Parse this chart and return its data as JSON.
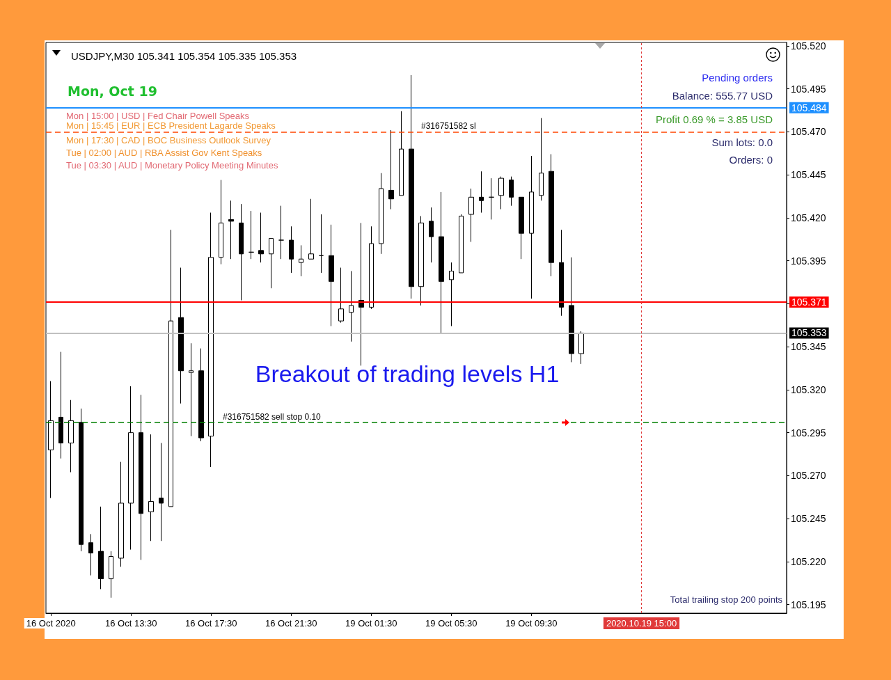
{
  "chart_data": {
    "type": "candlestick",
    "title": "USDJPY,M30 105.341 105.354 105.335 105.353",
    "categories": [
      "16 Oct 2020",
      null,
      null,
      null,
      null,
      null,
      null,
      null,
      "16 Oct 13:30",
      null,
      null,
      null,
      null,
      null,
      null,
      null,
      "16 Oct 17:30",
      null,
      null,
      null,
      null,
      null,
      null,
      null,
      "16 Oct 21:30",
      null,
      null,
      null,
      null,
      null,
      null,
      null,
      "19 Oct 01:30",
      null,
      null,
      null,
      null,
      null,
      null,
      null,
      "19 Oct 05:30",
      null,
      null,
      null,
      null,
      null,
      null,
      null,
      "19 Oct 09:30",
      null,
      null,
      null,
      null,
      null,
      null,
      null,
      null,
      null,
      null,
      "2020.10.19 15:00",
      null,
      null,
      null,
      null,
      null,
      null,
      null,
      null,
      null,
      null,
      null,
      null,
      null,
      null
    ],
    "ohlc": [
      [
        105.285,
        105.325,
        105.257,
        105.302
      ],
      [
        105.304,
        105.342,
        105.28,
        105.289
      ],
      [
        105.289,
        105.314,
        105.272,
        105.302
      ],
      [
        105.301,
        105.309,
        105.226,
        105.23
      ],
      [
        105.231,
        105.236,
        105.212,
        105.225
      ],
      [
        105.226,
        105.252,
        105.204,
        105.21
      ],
      [
        105.21,
        105.226,
        105.199,
        105.223
      ],
      [
        105.222,
        105.278,
        105.217,
        105.254
      ],
      [
        105.254,
        105.322,
        105.227,
        105.295
      ],
      [
        105.295,
        105.317,
        105.221,
        105.248
      ],
      [
        105.249,
        105.294,
        105.232,
        105.255
      ],
      [
        105.257,
        105.289,
        105.232,
        105.254
      ],
      [
        105.252,
        105.413,
        105.252,
        105.36
      ],
      [
        105.362,
        105.391,
        105.312,
        105.331
      ],
      [
        105.33,
        105.347,
        105.293,
        105.331
      ],
      [
        105.331,
        105.344,
        105.29,
        105.292
      ],
      [
        105.293,
        105.423,
        105.275,
        105.397
      ],
      [
        105.397,
        105.442,
        105.393,
        105.417
      ],
      [
        105.419,
        105.43,
        105.396,
        105.418
      ],
      [
        105.417,
        105.428,
        105.372,
        105.399
      ],
      [
        105.4,
        105.424,
        105.396,
        105.4
      ],
      [
        105.401,
        105.423,
        105.394,
        105.399
      ],
      [
        105.399,
        105.408,
        105.379,
        105.408
      ],
      [
        105.407,
        105.427,
        105.396,
        105.407
      ],
      [
        105.407,
        105.415,
        105.388,
        105.396
      ],
      [
        105.394,
        105.404,
        105.386,
        105.396
      ],
      [
        105.396,
        105.431,
        105.396,
        105.399
      ],
      [
        105.398,
        105.422,
        105.388,
        105.398
      ],
      [
        105.398,
        105.416,
        105.357,
        105.383
      ],
      [
        105.36,
        105.391,
        105.359,
        105.367
      ],
      [
        105.365,
        105.389,
        105.348,
        105.369
      ],
      [
        105.372,
        105.417,
        105.334,
        105.368
      ],
      [
        105.368,
        105.415,
        105.367,
        105.405
      ],
      [
        105.405,
        105.446,
        105.399,
        105.437
      ],
      [
        105.436,
        105.471,
        105.425,
        105.431
      ],
      [
        105.433,
        105.482,
        105.433,
        105.46
      ],
      [
        105.46,
        105.503,
        105.373,
        105.38
      ],
      [
        105.38,
        105.421,
        105.369,
        105.417
      ],
      [
        105.418,
        105.426,
        105.394,
        105.409
      ],
      [
        105.409,
        105.435,
        105.353,
        105.383
      ],
      [
        105.384,
        105.394,
        105.357,
        105.389
      ],
      [
        105.388,
        105.422,
        105.388,
        105.421
      ],
      [
        105.422,
        105.437,
        105.406,
        105.432
      ],
      [
        105.432,
        105.447,
        105.423,
        105.43
      ],
      [
        105.432,
        105.443,
        105.419,
        105.432
      ],
      [
        105.433,
        105.444,
        105.425,
        105.443
      ],
      [
        105.442,
        105.444,
        105.427,
        105.432
      ],
      [
        105.432,
        105.432,
        105.396,
        105.411
      ],
      [
        105.411,
        105.456,
        105.373,
        105.435
      ],
      [
        105.433,
        105.478,
        105.43,
        105.446
      ],
      [
        105.447,
        105.457,
        105.386,
        105.394
      ],
      [
        105.394,
        105.413,
        105.363,
        105.368
      ],
      [
        105.369,
        105.397,
        105.336,
        105.341
      ],
      [
        105.341,
        105.354,
        105.335,
        105.353
      ],
      null,
      null,
      null,
      null,
      null,
      null,
      null,
      null,
      null,
      null,
      null,
      null,
      null,
      null,
      null,
      null,
      null,
      null,
      null,
      null
    ],
    "ylim": [
      105.19,
      105.522
    ],
    "yticks": [
      105.195,
      {
        "value": 105.22,
        "label": "105.220"
      },
      105.245,
      {
        "value": 105.27,
        "label": "105.270"
      },
      105.295,
      {
        "value": 105.32,
        "label": "105.320"
      },
      105.345,
      {
        "value": 105.37,
        "label": null
      },
      105.395,
      {
        "value": 105.42,
        "label": "105.420"
      },
      105.445,
      {
        "value": 105.47,
        "label": "105.470"
      },
      105.495,
      {
        "value": 105.52,
        "label": "105.520"
      }
    ],
    "ref_lines": [
      {
        "axis": "y",
        "value": 105.484,
        "label": "105.484",
        "color": "#1e90ff",
        "line_style": "solid"
      },
      {
        "axis": "y",
        "value": 105.371,
        "label": "105.371",
        "color": "#ff0000",
        "line_style": "solid"
      },
      {
        "axis": "y",
        "value": 105.353,
        "label": "105.353",
        "color": "#c0c0c0",
        "line_style": "solid"
      },
      {
        "axis": "y",
        "value": 105.47,
        "label": "#316751582 sl",
        "color": "#ff4500",
        "line_style": "dashed"
      },
      {
        "axis": "y",
        "value": 105.301,
        "label": "#316751582 sell stop 0.10",
        "color": "#008000",
        "line_style": "dashed"
      },
      {
        "axis": "x",
        "value": "2020.10.19 15:00",
        "color": "#e03a3a",
        "line_style": "dotted"
      }
    ],
    "annotations": [
      "Mon, Oct 19",
      "Mon | 15:00 | USD | Fed Chair Powell Speaks",
      "Mon | 15:45 | EUR | ECB President Lagarde Speaks",
      "Mon | 17:30 | CAD | BOC Business Outlook Survey",
      "Tue | 02:00 | AUD | RBA Assist Gov Kent Speaks",
      "Tue | 03:30 | AUD | Monetary Policy Meeting Minutes",
      "Pending orders",
      "Balance: 555.77 USD",
      "Profit 0.69 % = 3.85 USD",
      "Sum lots: 0.0",
      "Orders: 0",
      "Breakout of trading levels H1",
      "Total trailing stop 200 points"
    ]
  }
}
